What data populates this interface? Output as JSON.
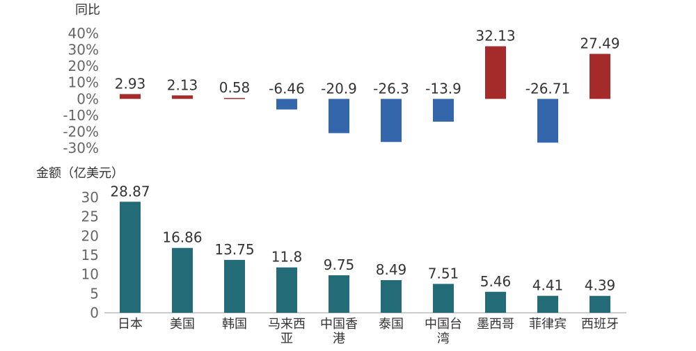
{
  "chart_data": [
    {
      "type": "bar",
      "ylabel": "同比",
      "ylim": [
        -30,
        40
      ],
      "yticks": [
        "40%",
        "30%",
        "20%",
        "10%",
        "0%",
        "-10%",
        "-20%",
        "-30%"
      ],
      "categories": [
        "日本",
        "美国",
        "韩国",
        "马来西亚",
        "中国香港",
        "泰国",
        "中国台湾",
        "墨西哥",
        "菲律宾",
        "西班牙"
      ],
      "values": [
        2.93,
        2.13,
        0.58,
        -6.46,
        -20.9,
        -26.3,
        -13.9,
        32.13,
        -26.71,
        27.49
      ],
      "data_labels": [
        "2.93",
        "2.13",
        "0.58",
        "-6.46",
        "-20.9",
        "-26.3",
        "-13.9",
        "32.13",
        "-26.71",
        "27.49"
      ],
      "colors": {
        "positive": "#A52A2A",
        "negative": "#3366AA"
      },
      "grid": false
    },
    {
      "type": "bar",
      "ylabel": "金额（亿美元）",
      "ylim": [
        0,
        30
      ],
      "yticks": [
        "30",
        "25",
        "20",
        "15",
        "10",
        "5",
        "0"
      ],
      "categories": [
        "日本",
        "美国",
        "韩国",
        "马来西亚",
        "中国香港",
        "泰国",
        "中国台湾",
        "墨西哥",
        "菲律宾",
        "西班牙"
      ],
      "values": [
        28.87,
        16.86,
        13.75,
        11.8,
        9.75,
        8.49,
        7.51,
        5.46,
        4.41,
        4.39
      ],
      "data_labels": [
        "28.87",
        "16.86",
        "13.75",
        "11.8",
        "9.75",
        "8.49",
        "7.51",
        "5.46",
        "4.41",
        "4.39"
      ],
      "colors": {
        "bar": "#246B78",
        "axis": "#999999"
      },
      "grid": false
    }
  ]
}
